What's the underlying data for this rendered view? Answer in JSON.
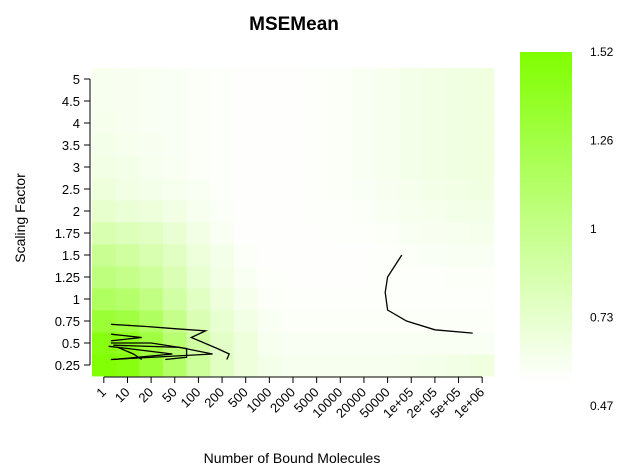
{
  "chart_data": {
    "type": "heatmap",
    "title": "MSEMean",
    "xlabel": "Number of Bound Molecules",
    "ylabel": "Scaling Factor",
    "x_categories": [
      "1",
      "10",
      "20",
      "50",
      "100",
      "200",
      "500",
      "1000",
      "2000",
      "5000",
      "10000",
      "20000",
      "50000",
      "1e+05",
      "2e+05",
      "5e+05",
      "1e+06"
    ],
    "y_categories": [
      "0.25",
      "0.5",
      "0.75",
      "1",
      "1.25",
      "1.5",
      "1.75",
      "2",
      "2.5",
      "3",
      "3.5",
      "4",
      "4.5",
      "5"
    ],
    "colorbar": {
      "min": 0.47,
      "max": 1.52,
      "tick_labels": [
        "1.52",
        "1.26",
        "1",
        "0.73",
        "0.47"
      ],
      "low_color": "#ffffff",
      "high_color": "#80ff00"
    },
    "values": [
      [
        1.5,
        1.46,
        1.3,
        1.1,
        0.88,
        0.72,
        0.62,
        0.56,
        0.54,
        0.54,
        0.54,
        0.54,
        0.54,
        0.55,
        0.56,
        0.58,
        0.6
      ],
      [
        1.45,
        1.4,
        1.25,
        1.05,
        0.85,
        0.7,
        0.62,
        0.54,
        0.52,
        0.52,
        0.52,
        0.52,
        0.52,
        0.52,
        0.52,
        0.52,
        0.52
      ],
      [
        1.3,
        1.25,
        1.12,
        0.95,
        0.78,
        0.66,
        0.58,
        0.52,
        0.5,
        0.5,
        0.5,
        0.5,
        0.5,
        0.5,
        0.5,
        0.5,
        0.5
      ],
      [
        1.12,
        1.08,
        0.98,
        0.85,
        0.72,
        0.62,
        0.55,
        0.5,
        0.49,
        0.49,
        0.49,
        0.49,
        0.49,
        0.49,
        0.49,
        0.49,
        0.49
      ],
      [
        1.0,
        0.95,
        0.88,
        0.78,
        0.66,
        0.58,
        0.52,
        0.49,
        0.48,
        0.48,
        0.48,
        0.48,
        0.49,
        0.49,
        0.49,
        0.5,
        0.5
      ],
      [
        0.92,
        0.86,
        0.8,
        0.72,
        0.62,
        0.56,
        0.5,
        0.48,
        0.48,
        0.48,
        0.48,
        0.48,
        0.49,
        0.5,
        0.51,
        0.52,
        0.52
      ],
      [
        0.8,
        0.76,
        0.72,
        0.65,
        0.58,
        0.52,
        0.48,
        0.48,
        0.48,
        0.48,
        0.49,
        0.49,
        0.5,
        0.52,
        0.53,
        0.54,
        0.55
      ],
      [
        0.68,
        0.64,
        0.62,
        0.58,
        0.54,
        0.5,
        0.48,
        0.48,
        0.48,
        0.49,
        0.49,
        0.5,
        0.52,
        0.54,
        0.55,
        0.56,
        0.57
      ],
      [
        0.62,
        0.58,
        0.56,
        0.54,
        0.52,
        0.49,
        0.48,
        0.48,
        0.48,
        0.49,
        0.5,
        0.51,
        0.53,
        0.55,
        0.57,
        0.58,
        0.59
      ],
      [
        0.58,
        0.56,
        0.54,
        0.52,
        0.5,
        0.49,
        0.48,
        0.48,
        0.48,
        0.49,
        0.5,
        0.52,
        0.54,
        0.56,
        0.58,
        0.59,
        0.6
      ],
      [
        0.56,
        0.54,
        0.53,
        0.51,
        0.5,
        0.49,
        0.48,
        0.48,
        0.48,
        0.49,
        0.5,
        0.52,
        0.54,
        0.56,
        0.58,
        0.59,
        0.6
      ],
      [
        0.55,
        0.53,
        0.52,
        0.51,
        0.5,
        0.49,
        0.48,
        0.48,
        0.48,
        0.49,
        0.5,
        0.52,
        0.54,
        0.56,
        0.58,
        0.59,
        0.6
      ],
      [
        0.54,
        0.53,
        0.52,
        0.51,
        0.5,
        0.49,
        0.48,
        0.48,
        0.48,
        0.49,
        0.5,
        0.52,
        0.54,
        0.56,
        0.58,
        0.59,
        0.6
      ],
      [
        0.54,
        0.53,
        0.52,
        0.51,
        0.5,
        0.49,
        0.48,
        0.48,
        0.48,
        0.49,
        0.5,
        0.52,
        0.54,
        0.56,
        0.58,
        0.59,
        0.6
      ]
    ],
    "contour_lines": [
      {
        "level": 1.4,
        "points": [
          [
            1.6,
            0.25
          ],
          [
            1.25,
            0.5
          ],
          [
            0.6,
            0.8
          ]
        ]
      },
      {
        "level": 1.3,
        "points": [
          [
            0.4,
            0.25
          ],
          [
            2.9,
            0.5
          ],
          [
            1.0,
            0.75
          ],
          [
            0.2,
            0.85
          ]
        ]
      },
      {
        "level": 1.2,
        "points": [
          [
            0.3,
            0.25
          ],
          [
            4.6,
            0.5
          ],
          [
            3.2,
            0.8
          ],
          [
            0.4,
            0.9
          ]
        ]
      },
      {
        "level": 1.1,
        "points": [
          [
            2.6,
            0.25
          ],
          [
            3.5,
            0.35
          ],
          [
            3.5,
            0.75
          ],
          [
            2.0,
            1.0
          ],
          [
            0.3,
            1.0
          ]
        ]
      },
      {
        "level": 1.0,
        "points": [
          [
            5.2,
            0.25
          ],
          [
            5.3,
            0.5
          ],
          [
            4.8,
            0.75
          ],
          [
            3.7,
            1.25
          ],
          [
            4.3,
            1.55
          ],
          [
            3.0,
            1.65
          ],
          [
            1.8,
            1.75
          ],
          [
            0.3,
            1.85
          ]
        ]
      },
      {
        "level": 0.9,
        "points": [
          [
            0.3,
            1.1
          ],
          [
            1.6,
            1.25
          ],
          [
            0.3,
            1.4
          ]
        ]
      },
      {
        "level": 0.8,
        "points": [
          [
            12.6,
            5.0
          ],
          [
            12.0,
            4.0
          ],
          [
            11.9,
            3.3
          ],
          [
            12.0,
            2.5
          ],
          [
            12.8,
            2.0
          ],
          [
            14.0,
            1.6
          ],
          [
            15.6,
            1.45
          ]
        ]
      }
    ]
  }
}
